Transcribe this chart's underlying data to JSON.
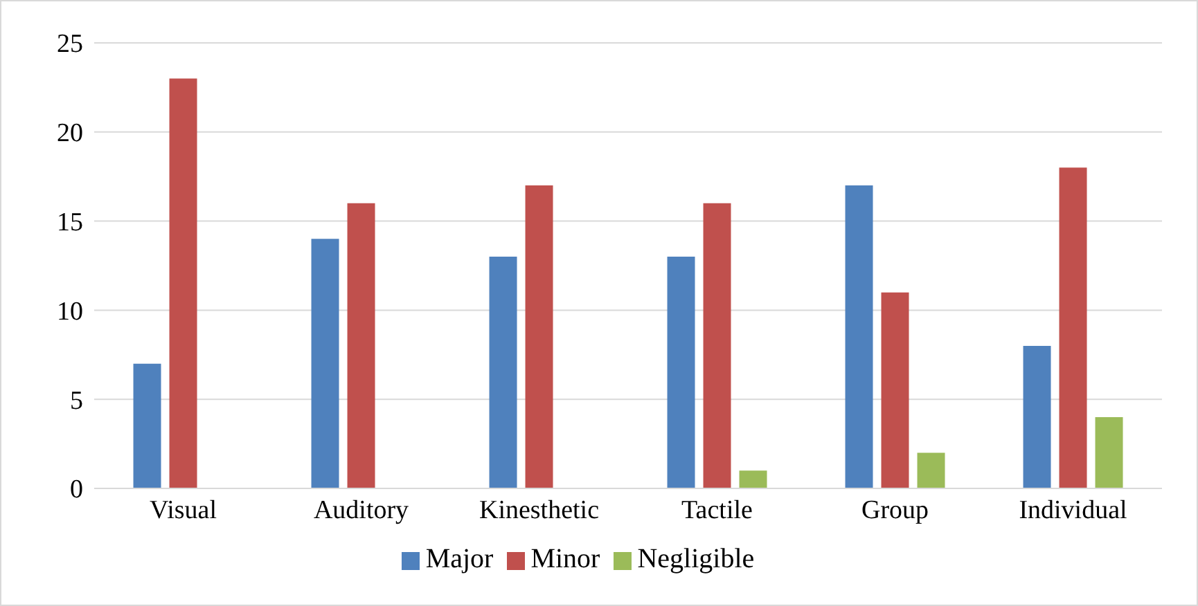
{
  "chart_data": {
    "type": "bar",
    "categories": [
      "Visual",
      "Auditory",
      "Kinesthetic",
      "Tactile",
      "Group",
      "Individual"
    ],
    "series": [
      {
        "name": "Major",
        "color": "#4f81bd",
        "values": [
          7,
          14,
          13,
          13,
          17,
          8
        ]
      },
      {
        "name": "Minor",
        "color": "#c0504d",
        "values": [
          23,
          16,
          17,
          16,
          11,
          18
        ]
      },
      {
        "name": "Negligible",
        "color": "#9bbb59",
        "values": [
          0,
          0,
          0,
          1,
          2,
          4
        ]
      }
    ],
    "ylim": [
      0,
      25
    ],
    "yticks": [
      0,
      5,
      10,
      15,
      20,
      25
    ],
    "grid": "y",
    "legend": "bottom"
  }
}
